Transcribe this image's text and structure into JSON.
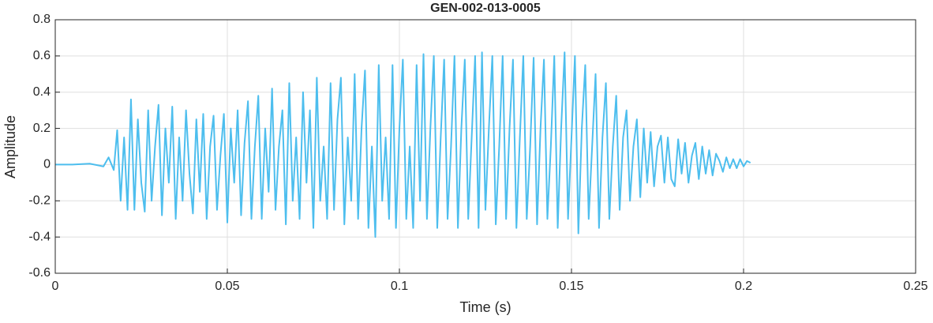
{
  "chart_data": {
    "type": "line",
    "title": "GEN-002-013-0005",
    "x_label": "Time (s)",
    "y_label": "Amplitude",
    "x": [
      0,
      0.005,
      0.01,
      0.014,
      0.0155,
      0.017,
      0.018,
      0.019,
      0.02,
      0.021,
      0.022,
      0.023,
      0.024,
      0.025,
      0.026,
      0.027,
      0.028,
      0.029,
      0.03,
      0.031,
      0.032,
      0.033,
      0.034,
      0.035,
      0.036,
      0.037,
      0.038,
      0.039,
      0.04,
      0.041,
      0.042,
      0.043,
      0.044,
      0.045,
      0.046,
      0.047,
      0.048,
      0.049,
      0.05,
      0.051,
      0.052,
      0.053,
      0.054,
      0.055,
      0.056,
      0.057,
      0.058,
      0.059,
      0.06,
      0.061,
      0.062,
      0.063,
      0.064,
      0.065,
      0.066,
      0.067,
      0.068,
      0.069,
      0.07,
      0.071,
      0.072,
      0.073,
      0.074,
      0.075,
      0.076,
      0.077,
      0.078,
      0.079,
      0.08,
      0.081,
      0.082,
      0.083,
      0.084,
      0.085,
      0.086,
      0.087,
      0.088,
      0.089,
      0.09,
      0.091,
      0.092,
      0.093,
      0.094,
      0.095,
      0.096,
      0.097,
      0.098,
      0.099,
      0.1,
      0.101,
      0.102,
      0.103,
      0.104,
      0.105,
      0.106,
      0.107,
      0.108,
      0.109,
      0.11,
      0.111,
      0.112,
      0.113,
      0.114,
      0.115,
      0.116,
      0.117,
      0.118,
      0.119,
      0.12,
      0.121,
      0.122,
      0.123,
      0.124,
      0.125,
      0.126,
      0.127,
      0.128,
      0.129,
      0.13,
      0.131,
      0.132,
      0.133,
      0.134,
      0.135,
      0.136,
      0.137,
      0.138,
      0.139,
      0.14,
      0.141,
      0.142,
      0.143,
      0.144,
      0.145,
      0.146,
      0.147,
      0.148,
      0.149,
      0.15,
      0.151,
      0.152,
      0.153,
      0.154,
      0.155,
      0.156,
      0.157,
      0.158,
      0.159,
      0.16,
      0.161,
      0.162,
      0.163,
      0.164,
      0.165,
      0.166,
      0.167,
      0.168,
      0.169,
      0.17,
      0.171,
      0.172,
      0.173,
      0.174,
      0.175,
      0.176,
      0.177,
      0.178,
      0.179,
      0.18,
      0.181,
      0.182,
      0.183,
      0.184,
      0.185,
      0.186,
      0.187,
      0.188,
      0.189,
      0.19,
      0.191,
      0.192,
      0.193,
      0.194,
      0.195,
      0.196,
      0.197,
      0.198,
      0.199,
      0.2,
      0.201,
      0.202
    ],
    "series": [
      {
        "name": "Amplitude",
        "color": "#4DBEEE",
        "values": [
          0,
          0,
          0.005,
          -0.01,
          0.04,
          -0.03,
          0.19,
          -0.2,
          0.15,
          -0.25,
          0.36,
          -0.25,
          0.25,
          -0.1,
          -0.26,
          0.3,
          -0.2,
          0.1,
          0.33,
          -0.28,
          0.2,
          -0.1,
          0.32,
          -0.3,
          0.15,
          -0.2,
          0.3,
          -0.05,
          -0.27,
          0.25,
          -0.15,
          0.28,
          -0.3,
          0.1,
          0.27,
          -0.25,
          0.05,
          0.28,
          -0.32,
          0.2,
          -0.1,
          0.3,
          -0.28,
          0.12,
          0.35,
          -0.3,
          0.1,
          0.38,
          -0.3,
          0.2,
          -0.15,
          0.42,
          -0.25,
          0.1,
          0.3,
          -0.33,
          0.45,
          -0.2,
          0.15,
          -0.3,
          0.4,
          -0.1,
          0.3,
          -0.35,
          0.48,
          -0.2,
          0.1,
          -0.3,
          0.45,
          -0.25,
          0.25,
          0.48,
          -0.33,
          0.15,
          -0.2,
          0.5,
          -0.3,
          0.2,
          0.52,
          -0.35,
          0.1,
          -0.4,
          0.55,
          -0.2,
          0.15,
          -0.3,
          0.55,
          -0.35,
          0.2,
          0.58,
          -0.3,
          0.1,
          -0.35,
          0.55,
          -0.2,
          0.61,
          -0.3,
          0.2,
          0.6,
          -0.35,
          0.15,
          0.58,
          -0.3,
          0.1,
          0.6,
          -0.35,
          0.2,
          0.58,
          -0.3,
          0.15,
          0.6,
          -0.35,
          0.62,
          -0.25,
          0.2,
          0.6,
          -0.33,
          0.1,
          0.6,
          -0.3,
          0.2,
          0.58,
          -0.35,
          0.15,
          0.6,
          -0.3,
          0.1,
          0.59,
          -0.33,
          0.2,
          0.58,
          -0.3,
          0.1,
          0.6,
          -0.35,
          0.2,
          0.62,
          -0.3,
          0.15,
          0.6,
          -0.38,
          0.2,
          0.55,
          -0.3,
          0.1,
          0.5,
          -0.35,
          0.15,
          0.45,
          -0.3,
          0.1,
          0.38,
          -0.25,
          0.15,
          0.3,
          -0.2,
          0.1,
          0.25,
          -0.18,
          0.2,
          -0.1,
          0.18,
          -0.12,
          0.1,
          0.16,
          -0.1,
          0.15,
          -0.08,
          -0.12,
          0.14,
          -0.05,
          0.12,
          -0.1,
          0.05,
          0.12,
          -0.08,
          0.1,
          -0.05,
          0.08,
          -0.06,
          0.06,
          0.02,
          -0.04,
          0.04,
          -0.02,
          0.03,
          -0.02,
          0.03,
          -0.01,
          0.02,
          0.01
        ]
      }
    ],
    "xlim": [
      0,
      0.25
    ],
    "xticks": [
      0,
      0.05,
      0.1,
      0.15,
      0.2,
      0.25
    ],
    "ylim": [
      -0.6,
      0.8
    ],
    "yticks": [
      -0.6,
      -0.4,
      -0.2,
      0,
      0.2,
      0.4,
      0.6,
      0.8
    ],
    "grid": true
  }
}
